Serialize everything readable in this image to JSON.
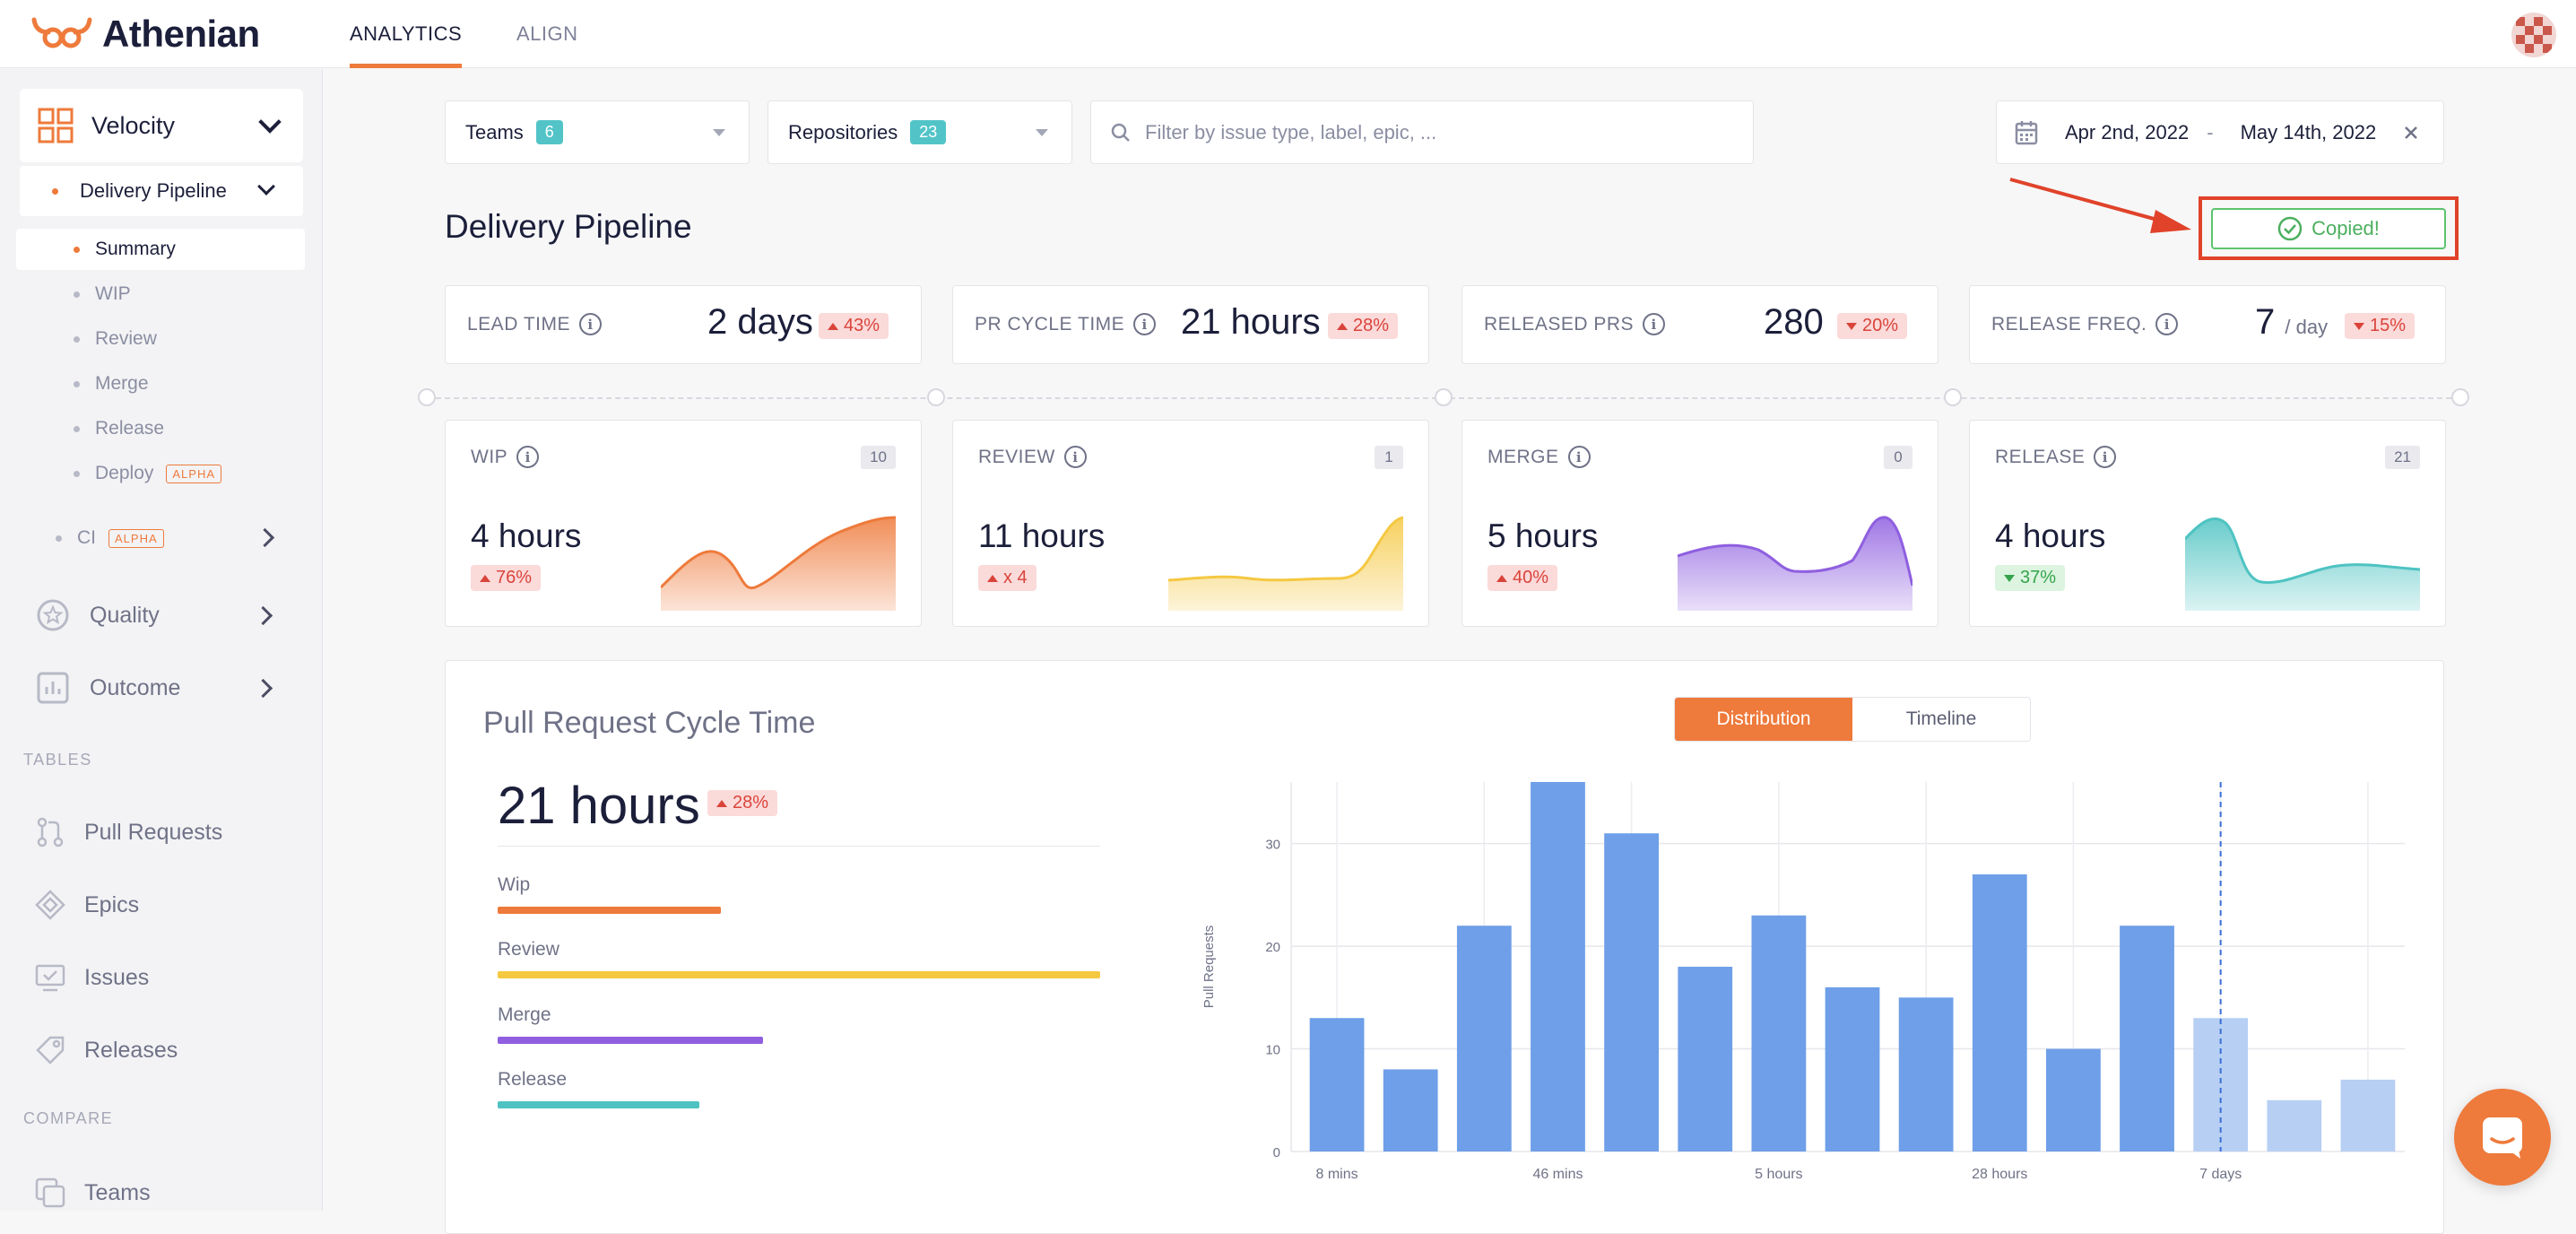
{
  "header": {
    "app_name": "Athenian",
    "tabs": [
      "ANALYTICS",
      "ALIGN"
    ],
    "active_tab": "ANALYTICS"
  },
  "sidebar": {
    "velocity": "Velocity",
    "delivery_pipeline": "Delivery Pipeline",
    "sub_items": [
      "Summary",
      "WIP",
      "Review",
      "Merge",
      "Release",
      "Deploy"
    ],
    "alpha_label": "ALPHA",
    "ci": "CI",
    "quality": "Quality",
    "outcome": "Outcome",
    "tables_heading": "TABLES",
    "tables": [
      "Pull Requests",
      "Epics",
      "Issues",
      "Releases"
    ],
    "compare_heading": "COMPARE",
    "compare": [
      "Teams"
    ]
  },
  "filters": {
    "teams_label": "Teams",
    "teams_count": "6",
    "repos_label": "Repositories",
    "repos_count": "23",
    "search_placeholder": "Filter by issue type, label, epic, ...",
    "date_from": "Apr 2nd, 2022",
    "date_sep": "-",
    "date_to": "May 14th, 2022"
  },
  "page": {
    "title": "Delivery Pipeline",
    "copied_label": "Copied!"
  },
  "kpis": [
    {
      "name": "LEAD TIME",
      "value": "2 days",
      "unit": "",
      "delta": "43%",
      "direction": "up"
    },
    {
      "name": "PR CYCLE TIME",
      "value": "21 hours",
      "unit": "",
      "delta": "28%",
      "direction": "up"
    },
    {
      "name": "RELEASED PRS",
      "value": "280",
      "unit": "",
      "delta": "20%",
      "direction": "down"
    },
    {
      "name": "RELEASE FREQ.",
      "value": "7",
      "unit": "/ day",
      "delta": "15%",
      "direction": "down"
    }
  ],
  "stages": [
    {
      "name": "WIP",
      "count": "10",
      "value": "4 hours",
      "delta": "76%",
      "direction": "up",
      "color": "#ee7a3b"
    },
    {
      "name": "REVIEW",
      "count": "1",
      "value": "11 hours",
      "delta": "x 4",
      "direction": "up",
      "color": "#f5c842"
    },
    {
      "name": "MERGE",
      "count": "0",
      "value": "5 hours",
      "delta": "40%",
      "direction": "up",
      "color": "#8f5fe0"
    },
    {
      "name": "RELEASE",
      "count": "21",
      "value": "4 hours",
      "delta": "37%",
      "direction": "down",
      "color": "#4ec3c2"
    }
  ],
  "cycle_panel": {
    "title": "Pull Request Cycle Time",
    "toggle": [
      "Distribution",
      "Timeline"
    ],
    "active_toggle": "Distribution",
    "total": "21 hours",
    "total_delta": "28%",
    "breakdown": [
      {
        "label": "Wip",
        "fraction": 0.37,
        "color": "#ee7a3b"
      },
      {
        "label": "Review",
        "fraction": 1.0,
        "color": "#f5c842"
      },
      {
        "label": "Merge",
        "fraction": 0.44,
        "color": "#8f5fe0"
      },
      {
        "label": "Release",
        "fraction": 0.335,
        "color": "#4ec3c2"
      }
    ]
  },
  "chart_data": {
    "type": "bar",
    "ylabel": "Pull Requests",
    "xlabel": "",
    "ylim": [
      0,
      36
    ],
    "yticks": [
      0,
      10,
      20,
      30
    ],
    "tick_labels": [
      {
        "index": 0,
        "label": "8 mins"
      },
      {
        "index": 3,
        "label": "46 mins"
      },
      {
        "index": 6,
        "label": "5 hours"
      },
      {
        "index": 9,
        "label": "28 hours"
      },
      {
        "index": 12,
        "label": "7 days"
      }
    ],
    "values": [
      13,
      8,
      22,
      36,
      31,
      18,
      23,
      16,
      15,
      27,
      10,
      22,
      13,
      5,
      7
    ],
    "faded_from_index": 12,
    "bar_color": "#6e9fe8",
    "faded_color": "#b7cff3",
    "marker_index": 12,
    "grid": true
  }
}
